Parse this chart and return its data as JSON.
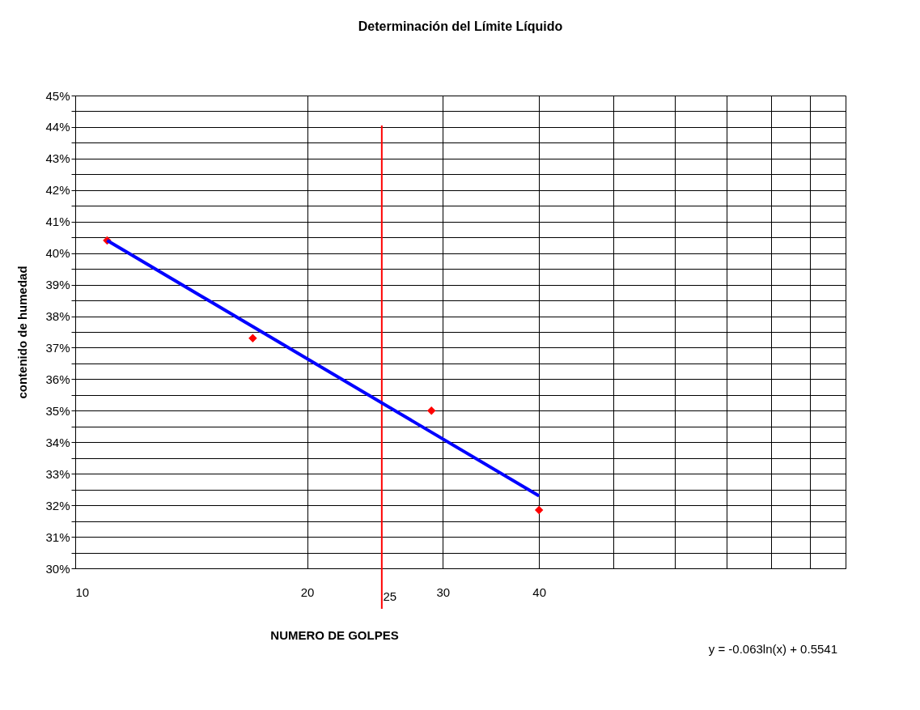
{
  "chart_data": {
    "type": "scatter",
    "title": "Determinación del Límite Líquido",
    "xlabel": "NUMERO DE GOLPES",
    "ylabel": "contenido de humedad",
    "log": "x",
    "xlim": [
      10,
      100
    ],
    "ylim": [
      0.3,
      0.45
    ],
    "xticks": [
      10,
      20,
      30,
      40,
      {
        "value": 50,
        "label": null
      },
      {
        "value": 60,
        "label": null
      },
      {
        "value": 70,
        "label": null
      },
      {
        "value": 80,
        "label": null
      },
      {
        "value": 90,
        "label": null
      },
      {
        "value": 100,
        "label": null
      }
    ],
    "yticks": [
      {
        "value": 0.3,
        "label": "30%"
      },
      {
        "value": 0.305,
        "label": null
      },
      {
        "value": 0.31,
        "label": "31%"
      },
      {
        "value": 0.315,
        "label": null
      },
      {
        "value": 0.32,
        "label": "32%"
      },
      {
        "value": 0.325,
        "label": null
      },
      {
        "value": 0.33,
        "label": "33%"
      },
      {
        "value": 0.335,
        "label": null
      },
      {
        "value": 0.34,
        "label": "34%"
      },
      {
        "value": 0.345,
        "label": null
      },
      {
        "value": 0.35,
        "label": "35%"
      },
      {
        "value": 0.355,
        "label": null
      },
      {
        "value": 0.36,
        "label": "36%"
      },
      {
        "value": 0.365,
        "label": null
      },
      {
        "value": 0.37,
        "label": "37%"
      },
      {
        "value": 0.375,
        "label": null
      },
      {
        "value": 0.38,
        "label": "38%"
      },
      {
        "value": 0.385,
        "label": null
      },
      {
        "value": 0.39,
        "label": "39%"
      },
      {
        "value": 0.395,
        "label": null
      },
      {
        "value": 0.4,
        "label": "40%"
      },
      {
        "value": 0.405,
        "label": null
      },
      {
        "value": 0.41,
        "label": "41%"
      },
      {
        "value": 0.415,
        "label": null
      },
      {
        "value": 0.42,
        "label": "42%"
      },
      {
        "value": 0.425,
        "label": null
      },
      {
        "value": 0.43,
        "label": "43%"
      },
      {
        "value": 0.435,
        "label": null
      },
      {
        "value": 0.44,
        "label": "44%"
      },
      {
        "value": 0.445,
        "label": null
      },
      {
        "value": 0.45,
        "label": "45%"
      }
    ],
    "grid": true,
    "series": [
      {
        "color": "#ff0000",
        "marker": "diamond",
        "x": [
          11,
          17,
          29,
          40
        ],
        "values": [
          0.404,
          0.373,
          0.35,
          0.3185
        ]
      },
      {
        "type": "line",
        "color": "#0000ff",
        "marker": "none",
        "line_style": "solid",
        "x": [
          11,
          40
        ],
        "values": [
          0.404,
          0.323
        ]
      }
    ],
    "ref_lines": [
      {
        "axis": "x",
        "value": 25,
        "label": "25",
        "color": "#ff0000"
      }
    ],
    "annotations": [
      "y = -0.063ln(x) + 0.5541"
    ]
  }
}
